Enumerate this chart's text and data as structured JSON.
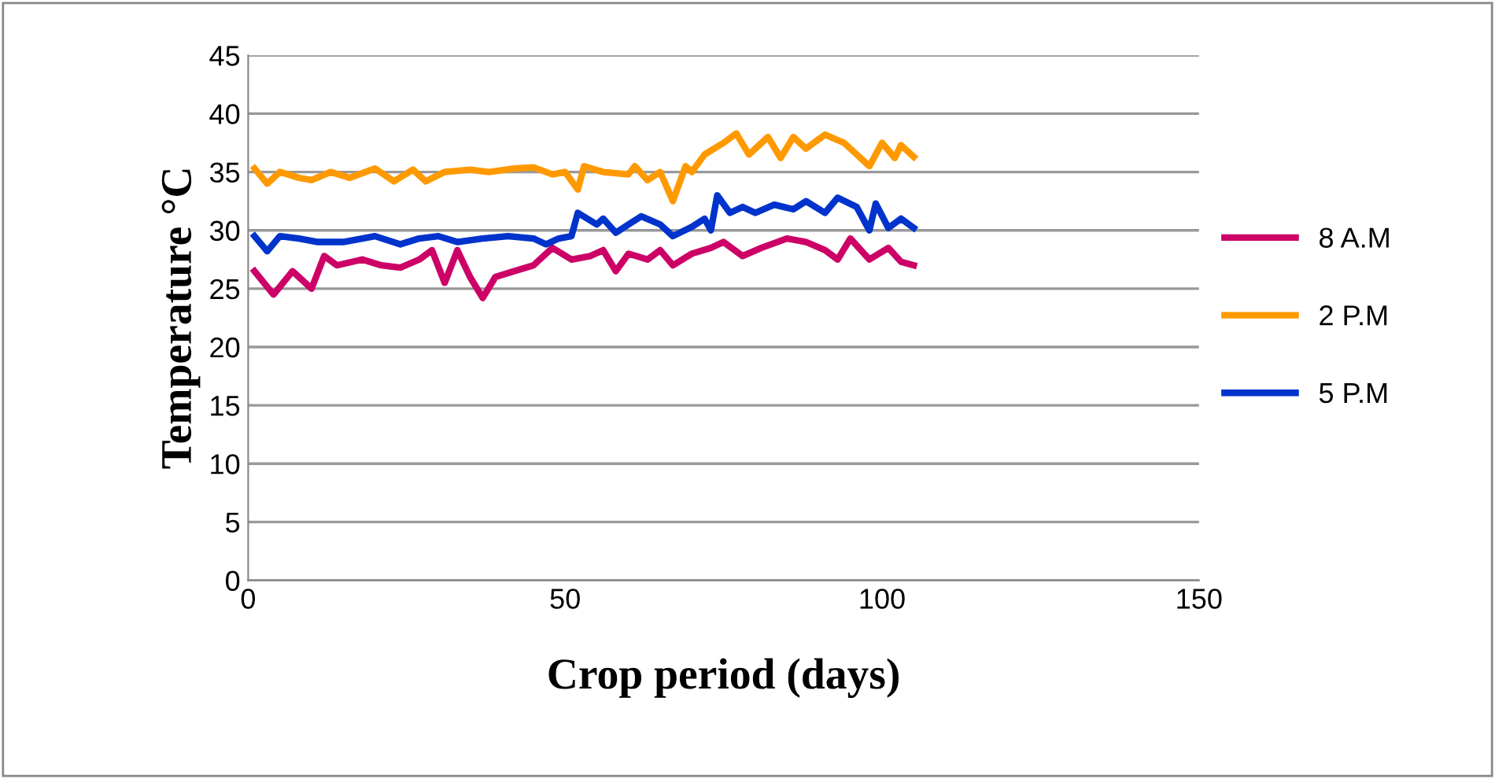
{
  "chart_data": {
    "type": "line",
    "xlabel": "Crop period (days)",
    "ylabel": "Temperature °C",
    "xlim": [
      0,
      150
    ],
    "xticks": [
      0,
      50,
      100,
      150
    ],
    "ylim": [
      0,
      45
    ],
    "yticks": [
      0,
      5,
      10,
      15,
      20,
      25,
      30,
      35,
      40,
      45
    ],
    "grid": "y",
    "legend": "right",
    "marker": "none",
    "line_style": "solid",
    "series": [
      {
        "name": "8 A.M",
        "color": "#cc0066",
        "x": [
          1,
          4,
          7,
          10,
          12,
          14,
          18,
          21,
          24,
          27,
          29,
          31,
          33,
          35,
          37,
          39,
          42,
          45,
          48,
          51,
          54,
          56,
          58,
          60,
          63,
          65,
          67,
          70,
          73,
          75,
          78,
          81,
          85,
          88,
          91,
          93,
          95,
          98,
          101,
          103,
          105
        ],
        "values": [
          26.5,
          24.5,
          26.5,
          25,
          27.8,
          27,
          27.5,
          27,
          26.8,
          27.5,
          28.3,
          25.5,
          28.3,
          26,
          24.2,
          26,
          26.5,
          27,
          28.5,
          27.5,
          27.8,
          28.3,
          26.5,
          28,
          27.5,
          28.3,
          27,
          28,
          28.5,
          29,
          27.8,
          28.5,
          29.3,
          29,
          28.3,
          27.5,
          29.3,
          27.5,
          28.5,
          27.3,
          27
        ]
      },
      {
        "name": "2 P.M",
        "color": "#ff9900",
        "x": [
          1,
          3,
          5,
          8,
          10,
          13,
          16,
          20,
          23,
          26,
          28,
          31,
          35,
          38,
          42,
          45,
          48,
          50,
          52,
          53,
          56,
          60,
          61,
          63,
          65,
          67,
          69,
          70,
          72,
          75,
          77,
          79,
          82,
          84,
          86,
          88,
          91,
          94,
          98,
          100,
          102,
          103,
          105
        ],
        "values": [
          35.3,
          34,
          35,
          34.5,
          34.3,
          35,
          34.5,
          35.3,
          34.2,
          35.2,
          34.2,
          35,
          35.2,
          35,
          35.3,
          35.4,
          34.8,
          35,
          33.5,
          35.5,
          35,
          34.8,
          35.5,
          34.3,
          35,
          32.5,
          35.5,
          35,
          36.5,
          37.5,
          38.3,
          36.5,
          38,
          36.2,
          38,
          37,
          38.2,
          37.5,
          35.5,
          37.5,
          36.2,
          37.3,
          36.3
        ]
      },
      {
        "name": "5 P.M",
        "color": "#0033cc",
        "x": [
          1,
          3,
          5,
          8,
          11,
          15,
          20,
          24,
          27,
          30,
          33,
          37,
          41,
          45,
          47,
          49,
          51,
          52,
          55,
          56,
          58,
          60,
          62,
          65,
          67,
          70,
          72,
          73,
          74,
          76,
          78,
          80,
          83,
          86,
          88,
          91,
          93,
          96,
          98,
          99,
          101,
          103,
          105
        ],
        "values": [
          29.5,
          28.2,
          29.5,
          29.3,
          29,
          29,
          29.5,
          28.8,
          29.3,
          29.5,
          29,
          29.3,
          29.5,
          29.3,
          28.8,
          29.3,
          29.5,
          31.5,
          30.5,
          31,
          29.8,
          30.5,
          31.2,
          30.5,
          29.5,
          30.3,
          31,
          30,
          33,
          31.5,
          32,
          31.5,
          32.2,
          31.8,
          32.5,
          31.5,
          32.8,
          32,
          30,
          32.3,
          30.2,
          31,
          30.2
        ]
      }
    ]
  }
}
